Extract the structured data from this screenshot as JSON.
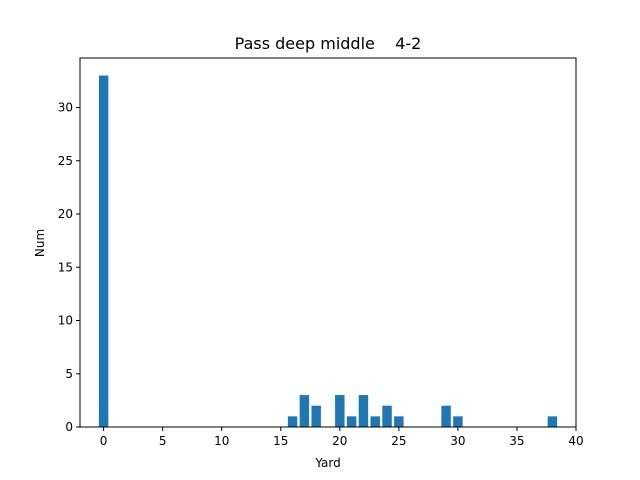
{
  "chart_data": {
    "type": "bar",
    "title": "Pass deep middle    4-2",
    "xlabel": "Yard",
    "ylabel": "Num",
    "x": [
      0,
      16,
      17,
      18,
      20,
      21,
      22,
      23,
      24,
      25,
      29,
      30,
      38
    ],
    "values": [
      33,
      1,
      3,
      2,
      3,
      1,
      3,
      1,
      2,
      1,
      2,
      1,
      1
    ],
    "xlim": [
      -2,
      40
    ],
    "ylim": [
      0,
      34.65
    ],
    "xticks": [
      0,
      5,
      10,
      15,
      20,
      25,
      30,
      35,
      40
    ],
    "yticks": [
      0,
      5,
      10,
      15,
      20,
      25,
      30
    ],
    "grid": false,
    "bar_color": "#1f77b4"
  }
}
